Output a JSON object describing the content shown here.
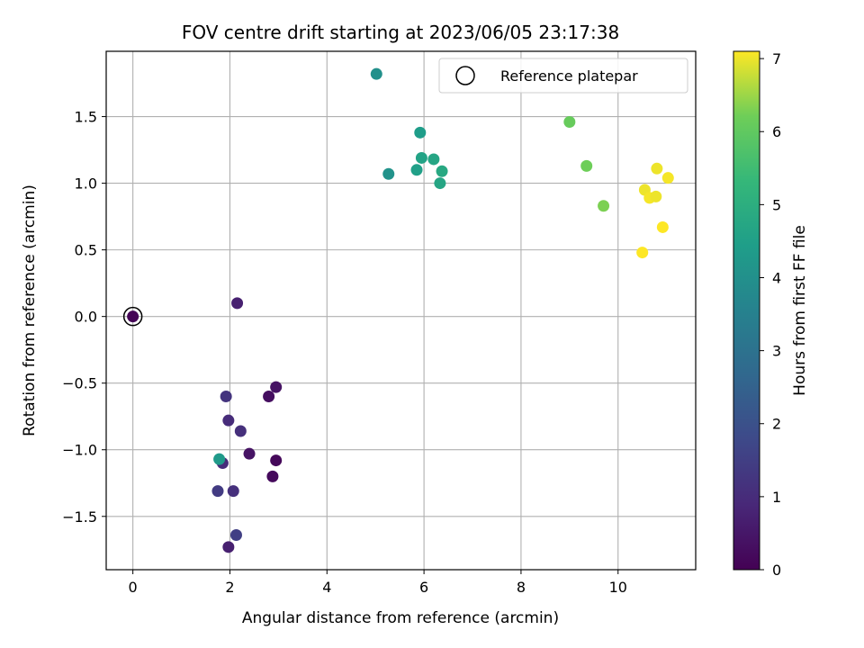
{
  "chart_data": {
    "type": "scatter",
    "title": "FOV centre drift starting at 2023/06/05 23:17:38",
    "xlabel": "Angular distance from reference (arcmin)",
    "ylabel": "Rotation from reference (arcmin)",
    "xlim": [
      -0.55,
      11.6
    ],
    "ylim": [
      -1.9,
      1.99
    ],
    "xticks": [
      0,
      2,
      4,
      6,
      8,
      10
    ],
    "yticks": [
      -1.5,
      -1.0,
      -0.5,
      0.0,
      0.5,
      1.0,
      1.5
    ],
    "xtick_labels": [
      "0",
      "2",
      "4",
      "6",
      "8",
      "10"
    ],
    "ytick_labels": [
      "−1.5",
      "−1.0",
      "−0.5",
      "0.0",
      "0.5",
      "1.0",
      "1.5"
    ],
    "grid": true,
    "colormap": "viridis",
    "colorbar": {
      "label": "Hours from first FF file",
      "range": [
        0,
        7.1
      ],
      "ticks": [
        0,
        1,
        2,
        3,
        4,
        5,
        6,
        7
      ],
      "tick_labels": [
        "0",
        "1",
        "2",
        "3",
        "4",
        "5",
        "6",
        "7"
      ]
    },
    "legend": {
      "placement": "top-right",
      "entries": [
        {
          "label": "Reference platepar",
          "marker": "open-circle"
        }
      ]
    },
    "reference_point": {
      "x": 0.0,
      "y": 0.0
    },
    "points": [
      {
        "x": 0.0,
        "y": 0.0,
        "c": 0.05
      },
      {
        "x": 2.15,
        "y": 0.1,
        "c": 0.7
      },
      {
        "x": 1.92,
        "y": -0.6,
        "c": 1.2
      },
      {
        "x": 1.97,
        "y": -0.78,
        "c": 1.0
      },
      {
        "x": 2.22,
        "y": -0.86,
        "c": 1.1
      },
      {
        "x": 2.8,
        "y": -0.6,
        "c": 0.3
      },
      {
        "x": 2.95,
        "y": -0.53,
        "c": 0.4
      },
      {
        "x": 2.4,
        "y": -1.03,
        "c": 0.4
      },
      {
        "x": 2.95,
        "y": -1.08,
        "c": 0.15
      },
      {
        "x": 2.88,
        "y": -1.2,
        "c": 0.2
      },
      {
        "x": 1.85,
        "y": -1.1,
        "c": 1.0
      },
      {
        "x": 1.78,
        "y": -1.07,
        "c": 4.3
      },
      {
        "x": 1.75,
        "y": -1.31,
        "c": 1.4
      },
      {
        "x": 2.07,
        "y": -1.31,
        "c": 1.1
      },
      {
        "x": 2.13,
        "y": -1.64,
        "c": 1.5
      },
      {
        "x": 1.97,
        "y": -1.73,
        "c": 0.7
      },
      {
        "x": 5.02,
        "y": 1.82,
        "c": 4.0
      },
      {
        "x": 5.27,
        "y": 1.07,
        "c": 4.1
      },
      {
        "x": 5.92,
        "y": 1.38,
        "c": 4.4
      },
      {
        "x": 5.95,
        "y": 1.19,
        "c": 4.6
      },
      {
        "x": 5.85,
        "y": 1.1,
        "c": 4.5
      },
      {
        "x": 6.2,
        "y": 1.18,
        "c": 4.7
      },
      {
        "x": 6.37,
        "y": 1.09,
        "c": 4.8
      },
      {
        "x": 6.33,
        "y": 1.0,
        "c": 4.7
      },
      {
        "x": 9.0,
        "y": 1.46,
        "c": 6.1
      },
      {
        "x": 9.35,
        "y": 1.13,
        "c": 6.2
      },
      {
        "x": 9.7,
        "y": 0.83,
        "c": 6.3
      },
      {
        "x": 10.8,
        "y": 1.11,
        "c": 7.0
      },
      {
        "x": 11.03,
        "y": 1.04,
        "c": 7.05
      },
      {
        "x": 10.55,
        "y": 0.95,
        "c": 7.0
      },
      {
        "x": 10.65,
        "y": 0.89,
        "c": 7.05
      },
      {
        "x": 10.78,
        "y": 0.9,
        "c": 7.0
      },
      {
        "x": 10.92,
        "y": 0.67,
        "c": 7.1
      },
      {
        "x": 10.5,
        "y": 0.48,
        "c": 7.1
      }
    ]
  }
}
